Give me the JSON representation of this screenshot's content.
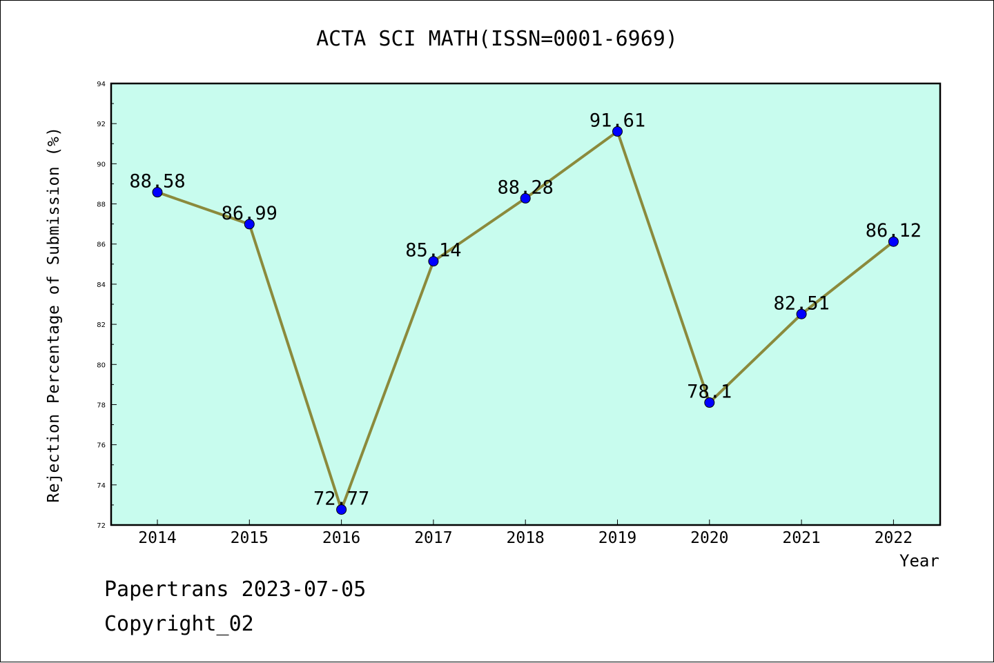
{
  "colors": {
    "plot_background": "#c8fcee",
    "line": "#8b8a3c",
    "marker": "#0000ff",
    "frame": "#000000"
  },
  "footer": {
    "line1": "Papertrans 2023-07-05",
    "line2": "Copyright_02"
  },
  "chart_data": {
    "type": "line",
    "title": "ACTA SCI MATH(ISSN=0001-6969)",
    "xlabel": "Year",
    "ylabel": "Rejection Percentage of Submission (%)",
    "categories": [
      "2014",
      "2015",
      "2016",
      "2017",
      "2018",
      "2019",
      "2020",
      "2021",
      "2022"
    ],
    "values": [
      88.58,
      86.99,
      72.77,
      85.14,
      88.28,
      91.61,
      78.1,
      82.51,
      86.12
    ],
    "data_labels": [
      "88.58",
      "86.99",
      "72.77",
      "85.14",
      "88.28",
      "91.61",
      "78.1",
      "82.51",
      "86.12"
    ],
    "ylim": [
      72,
      94
    ],
    "yticks": [
      72,
      74,
      76,
      78,
      80,
      82,
      84,
      86,
      88,
      90,
      92,
      94
    ],
    "grid": false,
    "legend": "none"
  }
}
